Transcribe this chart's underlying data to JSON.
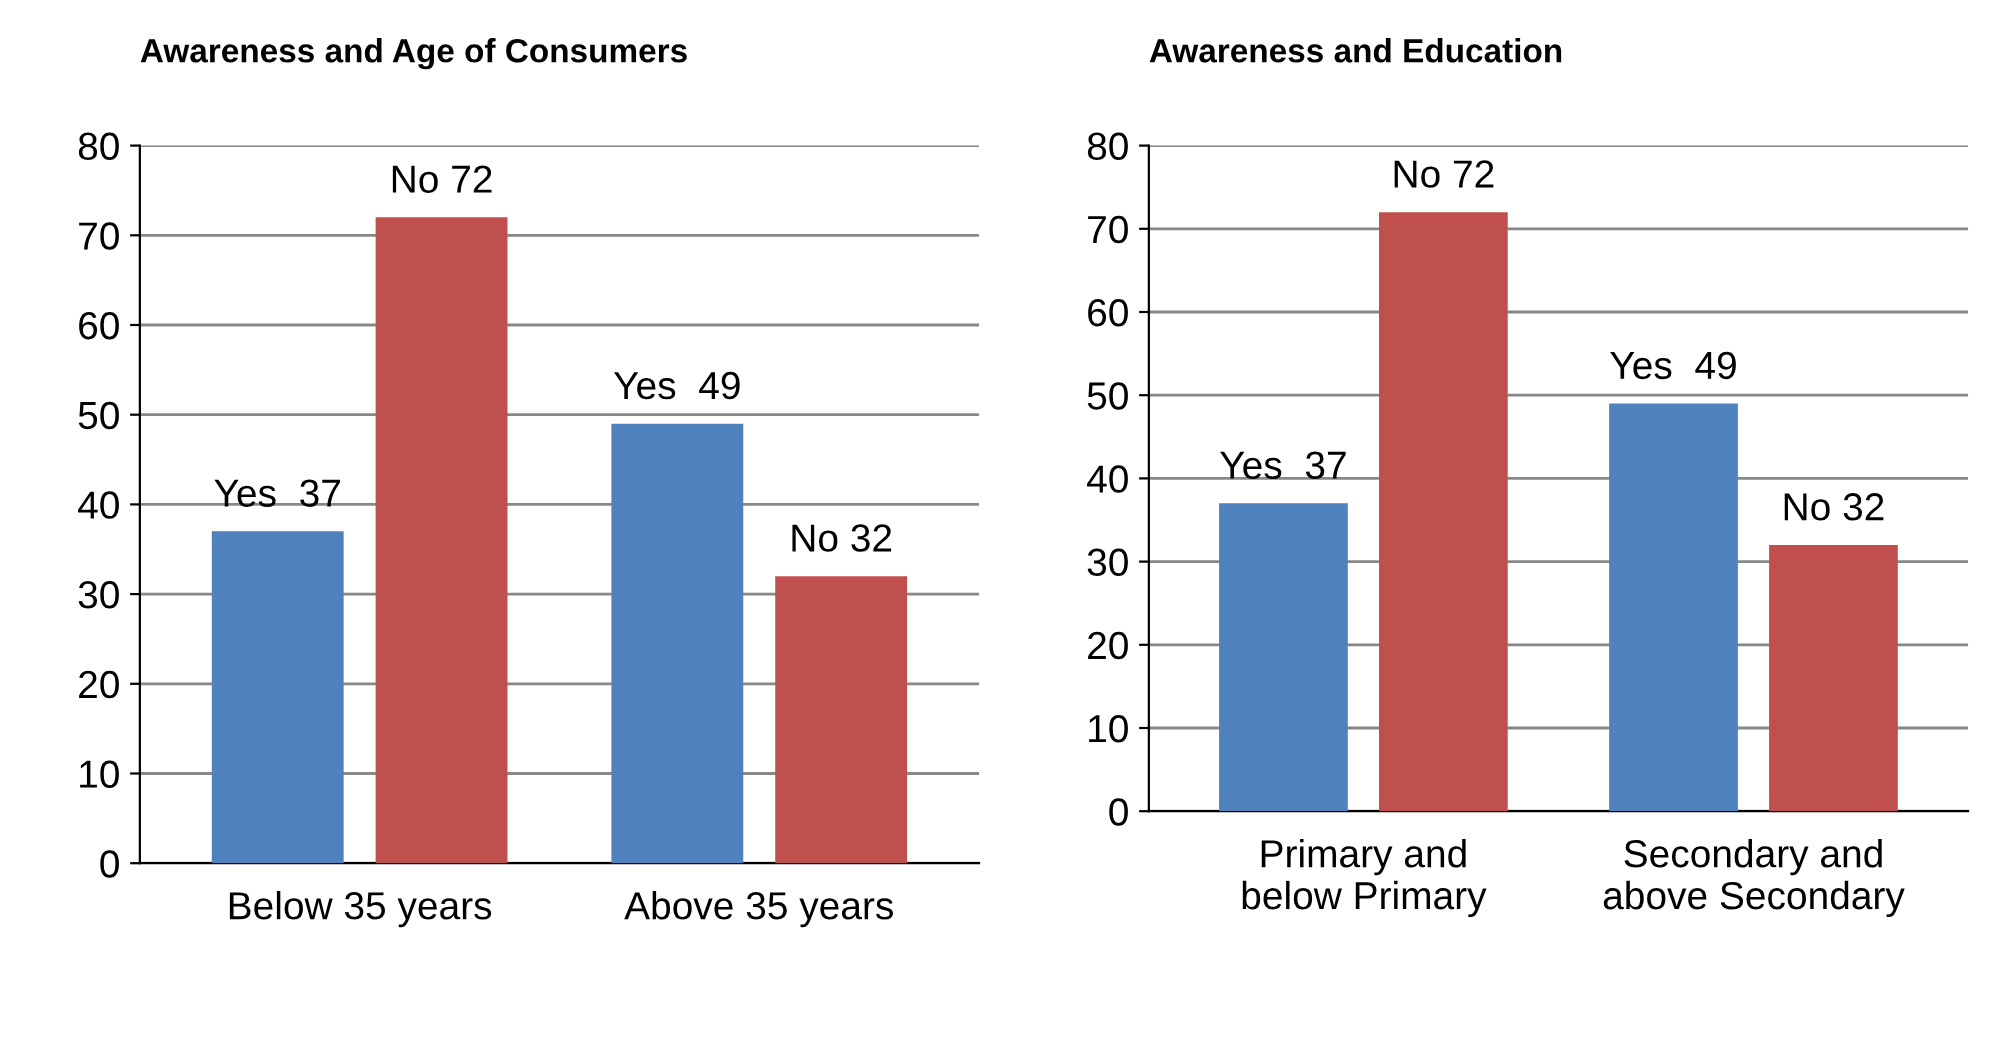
{
  "chart_data": [
    {
      "type": "bar",
      "title": "Awareness and Age of Consumers",
      "categories": [
        "Below 35 years",
        "Above 35 years"
      ],
      "series": [
        {
          "color": "#4f81bd",
          "values": [
            37,
            49
          ],
          "value_labels": [
            "Yes  37",
            "Yes  49"
          ]
        },
        {
          "color": "#c0504d",
          "values": [
            72,
            32
          ],
          "value_labels": [
            "No 72",
            "No 32"
          ]
        }
      ],
      "ylim": [
        0,
        80
      ],
      "yticks": [
        0,
        10,
        20,
        30,
        40,
        50,
        60,
        70,
        80
      ],
      "grid": "y"
    },
    {
      "type": "bar",
      "title": "Awareness and Education",
      "categories": [
        "Primary and\nbelow Primary",
        "Secondary and\nabove Secondary"
      ],
      "series": [
        {
          "color": "#4f81bd",
          "values": [
            37,
            49
          ],
          "value_labels": [
            "Yes  37",
            "Yes  49"
          ]
        },
        {
          "color": "#c0504d",
          "values": [
            72,
            32
          ],
          "value_labels": [
            "No 72",
            "No 32"
          ]
        }
      ],
      "ylim": [
        0,
        80
      ],
      "yticks": [
        0,
        10,
        20,
        30,
        40,
        50,
        60,
        70,
        80
      ],
      "grid": "y"
    }
  ]
}
